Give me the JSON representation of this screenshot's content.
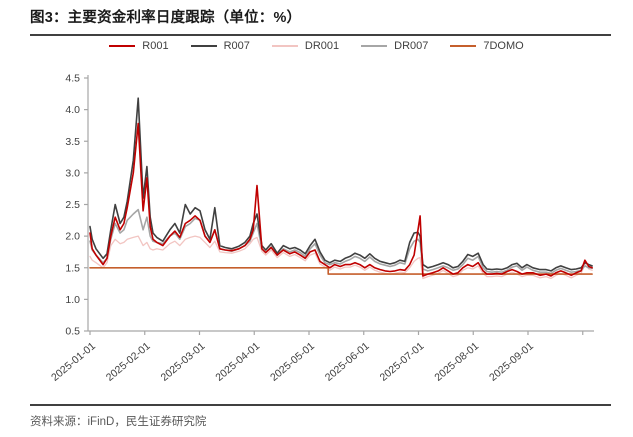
{
  "title": "图3：主要资金利率日度跟踪（单位：%）",
  "source": "资料来源：iFinD，民生证券研究院",
  "colors": {
    "title_text": "#1A1A1A",
    "rule_line": "#404040",
    "source_text": "#595959",
    "axis": "#A6A6A6",
    "tick_label": "#404040",
    "background": "#FFFFFF"
  },
  "chart_data": {
    "type": "line",
    "title": "主要资金利率日度跟踪",
    "unit": "%",
    "xlabel": "",
    "ylabel": "",
    "ylim": [
      0.5,
      4.5
    ],
    "ytick_step": 0.5,
    "grid": false,
    "legend_position": "top",
    "x_labels": [
      "2025-01-01",
      "2025-02-01",
      "2025-03-01",
      "2025-04-01",
      "2025-05-01",
      "2025-06-01",
      "2025-07-01",
      "2025-08-01",
      "2025-09-01"
    ],
    "x_months": [
      0,
      0.04,
      0.11,
      0.24,
      0.31,
      0.38,
      0.46,
      0.55,
      0.62,
      0.68,
      0.79,
      0.88,
      0.97,
      1.04,
      1.1,
      1.15,
      1.22,
      1.33,
      1.46,
      1.55,
      1.64,
      1.74,
      1.83,
      1.92,
      2.01,
      2.1,
      2.19,
      2.28,
      2.37,
      2.47,
      2.59,
      2.72,
      2.83,
      2.92,
      2.98,
      3.05,
      3.14,
      3.21,
      3.31,
      3.42,
      3.53,
      3.65,
      3.74,
      3.84,
      3.93,
      4.02,
      4.11,
      4.2,
      4.29,
      4.38,
      4.47,
      4.57,
      4.66,
      4.75,
      4.84,
      4.93,
      5.02,
      5.11,
      5.2,
      5.3,
      5.39,
      5.48,
      5.57,
      5.66,
      5.75,
      5.84,
      5.92,
      5.99,
      6.03,
      6.08,
      6.17,
      6.26,
      6.36,
      6.45,
      6.54,
      6.63,
      6.72,
      6.81,
      6.9,
      6.99,
      7.09,
      7.18,
      7.25,
      7.34,
      7.43,
      7.52,
      7.62,
      7.71,
      7.8,
      7.89,
      7.98,
      8.09,
      8.22,
      8.33,
      8.42,
      8.51,
      8.6,
      8.69,
      8.79,
      8.88,
      8.97,
      9.04,
      9.11,
      9.17
    ],
    "series": [
      {
        "name": "R001",
        "color": "#C00000",
        "width": 1.6,
        "z": 5,
        "values": [
          2.05,
          1.8,
          1.7,
          1.55,
          1.65,
          2.0,
          2.3,
          2.1,
          2.2,
          2.45,
          3.0,
          3.78,
          2.4,
          2.92,
          2.15,
          1.95,
          1.9,
          1.85,
          2.0,
          2.08,
          1.98,
          2.2,
          2.25,
          2.32,
          2.25,
          2.0,
          1.9,
          2.1,
          1.8,
          1.78,
          1.77,
          1.8,
          1.85,
          1.95,
          2.1,
          2.8,
          1.8,
          1.74,
          1.82,
          1.7,
          1.78,
          1.72,
          1.75,
          1.7,
          1.65,
          1.75,
          1.78,
          1.6,
          1.55,
          1.5,
          1.55,
          1.52,
          1.55,
          1.55,
          1.58,
          1.55,
          1.5,
          1.55,
          1.5,
          1.47,
          1.45,
          1.44,
          1.45,
          1.47,
          1.46,
          1.55,
          1.7,
          2.1,
          2.32,
          1.37,
          1.4,
          1.42,
          1.45,
          1.5,
          1.45,
          1.4,
          1.42,
          1.5,
          1.55,
          1.52,
          1.58,
          1.45,
          1.4,
          1.4,
          1.41,
          1.4,
          1.44,
          1.47,
          1.44,
          1.4,
          1.42,
          1.42,
          1.38,
          1.4,
          1.37,
          1.42,
          1.45,
          1.42,
          1.38,
          1.42,
          1.45,
          1.62,
          1.52,
          1.5
        ]
      },
      {
        "name": "R007",
        "color": "#404040",
        "width": 1.6,
        "z": 4,
        "values": [
          2.15,
          1.95,
          1.8,
          1.65,
          1.72,
          2.1,
          2.5,
          2.2,
          2.3,
          2.55,
          3.2,
          4.18,
          2.6,
          3.1,
          2.3,
          2.05,
          1.98,
          1.92,
          2.1,
          2.2,
          2.05,
          2.5,
          2.35,
          2.45,
          2.4,
          2.1,
          1.95,
          2.45,
          1.85,
          1.82,
          1.8,
          1.84,
          1.9,
          2.0,
          2.2,
          2.35,
          1.85,
          1.78,
          1.88,
          1.73,
          1.85,
          1.8,
          1.82,
          1.78,
          1.72,
          1.85,
          1.95,
          1.75,
          1.62,
          1.58,
          1.62,
          1.6,
          1.65,
          1.68,
          1.73,
          1.7,
          1.65,
          1.72,
          1.65,
          1.6,
          1.58,
          1.56,
          1.58,
          1.62,
          1.6,
          1.9,
          2.05,
          2.06,
          2.0,
          1.55,
          1.5,
          1.52,
          1.55,
          1.58,
          1.55,
          1.5,
          1.52,
          1.6,
          1.71,
          1.68,
          1.73,
          1.55,
          1.48,
          1.47,
          1.48,
          1.47,
          1.5,
          1.55,
          1.57,
          1.5,
          1.55,
          1.5,
          1.47,
          1.47,
          1.45,
          1.5,
          1.53,
          1.5,
          1.47,
          1.48,
          1.5,
          1.58,
          1.55,
          1.53
        ]
      },
      {
        "name": "DR001",
        "color": "#F2C5C2",
        "width": 1.3,
        "z": 1,
        "values": [
          1.68,
          1.62,
          1.58,
          1.5,
          1.58,
          1.85,
          1.95,
          1.88,
          1.9,
          1.95,
          1.98,
          2.0,
          1.85,
          1.9,
          1.8,
          1.78,
          1.8,
          1.78,
          1.88,
          1.92,
          1.85,
          1.95,
          1.98,
          2.0,
          1.98,
          1.9,
          1.82,
          1.92,
          1.75,
          1.74,
          1.73,
          1.76,
          1.8,
          1.88,
          1.95,
          1.98,
          1.76,
          1.7,
          1.78,
          1.66,
          1.74,
          1.68,
          1.71,
          1.66,
          1.61,
          1.7,
          1.73,
          1.56,
          1.51,
          1.46,
          1.51,
          1.48,
          1.51,
          1.51,
          1.54,
          1.51,
          1.46,
          1.51,
          1.46,
          1.43,
          1.41,
          1.4,
          1.41,
          1.43,
          1.42,
          1.5,
          1.6,
          1.65,
          1.66,
          1.33,
          1.36,
          1.38,
          1.41,
          1.46,
          1.41,
          1.36,
          1.38,
          1.46,
          1.5,
          1.48,
          1.53,
          1.41,
          1.36,
          1.36,
          1.37,
          1.36,
          1.4,
          1.43,
          1.4,
          1.36,
          1.38,
          1.38,
          1.34,
          1.36,
          1.33,
          1.38,
          1.41,
          1.38,
          1.34,
          1.38,
          1.41,
          1.55,
          1.48,
          1.46
        ]
      },
      {
        "name": "DR007",
        "color": "#A6A6A6",
        "width": 1.6,
        "z": 2,
        "values": [
          1.92,
          1.78,
          1.7,
          1.58,
          1.65,
          1.95,
          2.2,
          2.05,
          2.1,
          2.25,
          2.35,
          2.42,
          2.1,
          2.3,
          2.0,
          1.92,
          1.9,
          1.88,
          2.0,
          2.05,
          1.95,
          2.15,
          2.2,
          2.28,
          2.25,
          2.0,
          1.9,
          2.1,
          1.8,
          1.78,
          1.76,
          1.8,
          1.85,
          1.92,
          2.05,
          2.2,
          1.8,
          1.74,
          1.83,
          1.7,
          1.8,
          1.75,
          1.78,
          1.74,
          1.68,
          1.8,
          1.88,
          1.7,
          1.58,
          1.55,
          1.58,
          1.56,
          1.6,
          1.63,
          1.68,
          1.65,
          1.6,
          1.67,
          1.6,
          1.56,
          1.54,
          1.52,
          1.54,
          1.58,
          1.56,
          1.8,
          1.92,
          1.95,
          1.9,
          1.48,
          1.45,
          1.47,
          1.5,
          1.53,
          1.5,
          1.46,
          1.48,
          1.55,
          1.65,
          1.62,
          1.68,
          1.5,
          1.44,
          1.43,
          1.44,
          1.43,
          1.46,
          1.51,
          1.53,
          1.46,
          1.51,
          1.46,
          1.43,
          1.43,
          1.41,
          1.46,
          1.49,
          1.46,
          1.43,
          1.44,
          1.46,
          1.53,
          1.5,
          1.49
        ]
      },
      {
        "name": "7DOMO",
        "color": "#C55F2C",
        "width": 1.6,
        "z": 3,
        "step_points": [
          {
            "x": 0,
            "v": 1.5
          },
          {
            "x": 4.35,
            "v": 1.5
          },
          {
            "x": 4.35,
            "v": 1.4
          },
          {
            "x": 9.17,
            "v": 1.4
          }
        ]
      }
    ]
  }
}
